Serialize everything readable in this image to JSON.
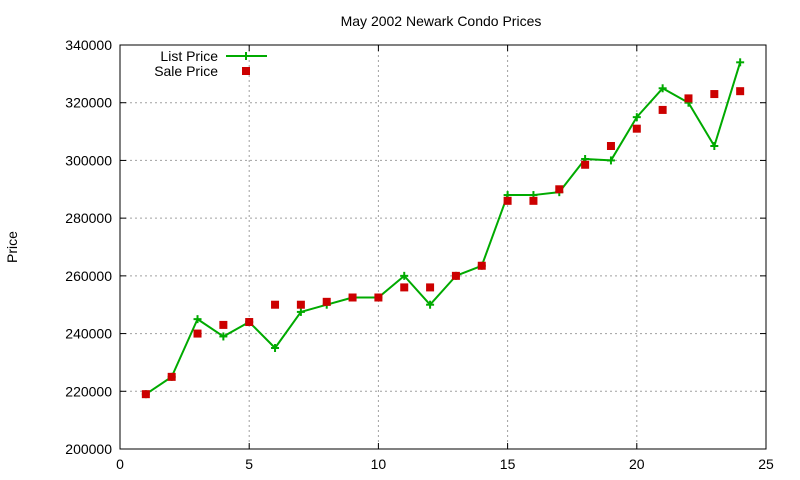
{
  "chart_data": {
    "type": "line",
    "title": "May 2002 Newark Condo Prices",
    "xlabel": "",
    "ylabel": "Price",
    "xlim": [
      0,
      25
    ],
    "ylim": [
      200000,
      340000
    ],
    "x_ticks": [
      0,
      5,
      10,
      15,
      20,
      25
    ],
    "y_ticks": [
      200000,
      220000,
      240000,
      260000,
      280000,
      300000,
      320000,
      340000
    ],
    "grid": true,
    "legend_position": "top-left",
    "series": [
      {
        "name": "List Price",
        "style": "line-with-plus-markers",
        "color": "#00aa00",
        "x": [
          1,
          2,
          3,
          4,
          5,
          6,
          7,
          8,
          9,
          10,
          11,
          12,
          13,
          14,
          15,
          16,
          17,
          18,
          19,
          20,
          21,
          22,
          23,
          24
        ],
        "y": [
          219000,
          225000,
          245000,
          239000,
          244000,
          235000,
          247500,
          250000,
          252500,
          252500,
          260000,
          250000,
          260000,
          263500,
          288000,
          288000,
          289000,
          300500,
          300000,
          315000,
          325000,
          320000,
          305000,
          334000
        ]
      },
      {
        "name": "Sale Price",
        "style": "square-markers",
        "color": "#cc0000",
        "x": [
          1,
          2,
          3,
          4,
          5,
          6,
          7,
          8,
          9,
          10,
          11,
          12,
          13,
          14,
          15,
          16,
          17,
          18,
          19,
          20,
          21,
          22,
          23,
          24
        ],
        "y": [
          219000,
          225000,
          240000,
          243000,
          244000,
          250000,
          250000,
          251000,
          252500,
          252500,
          256000,
          256000,
          260000,
          263500,
          286000,
          286000,
          290000,
          298500,
          305000,
          311000,
          317500,
          321500,
          323000,
          324000
        ]
      }
    ]
  }
}
